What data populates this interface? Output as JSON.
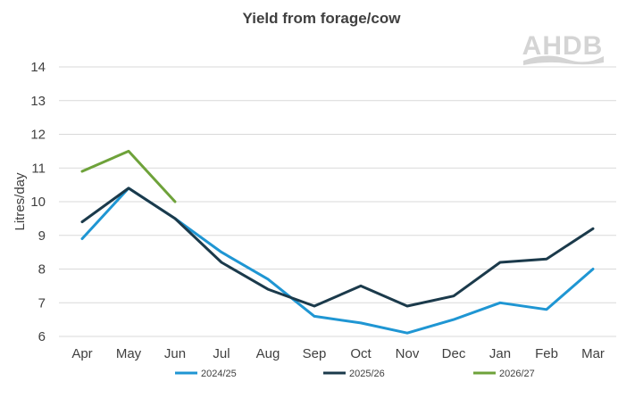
{
  "chart_data": {
    "type": "line",
    "title": "Yield from forage/cow",
    "xlabel": "",
    "ylabel": "Litres/day",
    "ylim": [
      6,
      14
    ],
    "yticks": [
      6,
      7,
      8,
      9,
      10,
      11,
      12,
      13,
      14
    ],
    "grid": true,
    "legend_position": "bottom",
    "categories": [
      "Apr",
      "May",
      "Jun",
      "Jul",
      "Aug",
      "Sep",
      "Oct",
      "Nov",
      "Dec",
      "Jan",
      "Feb",
      "Mar"
    ],
    "series": [
      {
        "name": "2024/25",
        "color": "#1f96d3",
        "values": [
          8.9,
          10.4,
          9.5,
          8.5,
          7.7,
          6.6,
          6.4,
          6.1,
          6.5,
          7.0,
          6.8,
          8.0
        ]
      },
      {
        "name": "2025/26",
        "color": "#1b3a4b",
        "values": [
          9.4,
          10.4,
          9.5,
          8.2,
          7.4,
          6.9,
          7.5,
          6.9,
          7.2,
          8.2,
          8.3,
          9.2
        ]
      },
      {
        "name": "2026/27",
        "color": "#6ea23a",
        "values": [
          10.9,
          11.5,
          10.0,
          null,
          null,
          null,
          null,
          null,
          null,
          null,
          null,
          null
        ]
      }
    ]
  },
  "logo": {
    "text": "AHDB"
  }
}
